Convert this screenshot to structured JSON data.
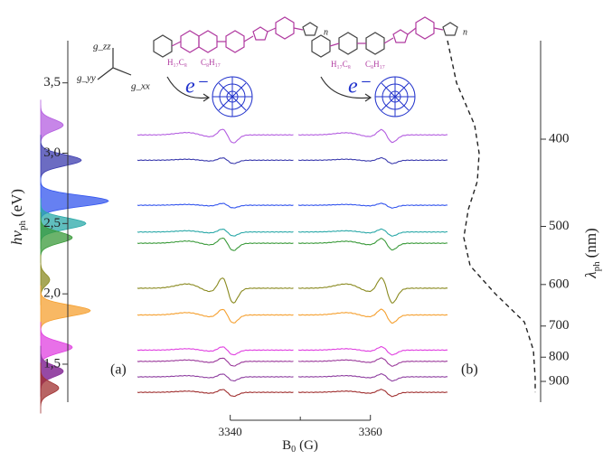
{
  "chart_data": {
    "type": "stacked-spectra",
    "y_label": {
      "main": "hν",
      "sub": "ph",
      "unit": "(eV)"
    },
    "y2_label": {
      "main": "λ",
      "sub": "ph",
      "unit": "(nm)"
    },
    "x_label": {
      "main": "B",
      "sub": "0",
      "unit": "(G)"
    },
    "ylim": [
      1.23,
      3.8
    ],
    "yticks": [
      {
        "value": 1.5,
        "label": "1,5"
      },
      {
        "value": 2.0,
        "label": "2,0"
      },
      {
        "value": 2.5,
        "label": "2,5"
      },
      {
        "value": 3.0,
        "label": "3,0"
      },
      {
        "value": 3.5,
        "label": "3,5"
      }
    ],
    "y2ticks": [
      400,
      500,
      600,
      700,
      800,
      900
    ],
    "xlim": [
      3326.5,
      3371
    ],
    "xticks": [
      3340,
      3360
    ],
    "xminor": [
      3350
    ],
    "panel_labels": [
      "(a)",
      "(b)"
    ],
    "electron_label": "e⁻",
    "g_labels": [
      "g_zz",
      "g_yy",
      "g_xx"
    ],
    "substituents": [
      "H₁₇C₈",
      "C₈H₁₇"
    ],
    "repeat_label": "n",
    "traces": [
      {
        "energy": 3.13,
        "color": "#b45ee0",
        "peak_energy": 3.2,
        "peak_height": 25,
        "amp_a": 12,
        "amp_b": 11
      },
      {
        "energy": 2.95,
        "color": "#3b3bae",
        "peak_energy": 2.95,
        "peak_height": 45,
        "amp_a": 5,
        "amp_b": 5
      },
      {
        "energy": 2.63,
        "color": "#3355ee",
        "peak_energy": 2.66,
        "peak_height": 75,
        "amp_a": 4,
        "amp_b": 4
      },
      {
        "energy": 2.44,
        "color": "#2aa8a8",
        "peak_energy": 2.5,
        "peak_height": 50,
        "amp_a": 6,
        "amp_b": 6
      },
      {
        "energy": 2.36,
        "color": "#3a9a3a",
        "peak_energy": 2.4,
        "peak_height": 35,
        "amp_a": 11,
        "amp_b": 10
      },
      {
        "energy": 2.04,
        "color": "#8a8a20",
        "peak_energy": 2.1,
        "peak_height": 10,
        "amp_a": 22,
        "amp_b": 22
      },
      {
        "energy": 1.85,
        "color": "#f5a030",
        "peak_energy": 1.88,
        "peak_height": 55,
        "amp_a": 12,
        "amp_b": 12
      },
      {
        "energy": 1.6,
        "color": "#e040e0",
        "peak_energy": 1.62,
        "peak_height": 35,
        "amp_a": 7,
        "amp_b": 7
      },
      {
        "energy": 1.52,
        "color": "#9b3a9b",
        "peak_energy": 1.45,
        "peak_height": 25,
        "amp_a": 7,
        "amp_b": 7
      },
      {
        "energy": 1.41,
        "color": "#8e3ea0",
        "peak_energy": 1.45,
        "peak_height": 25,
        "amp_a": 6,
        "amp_b": 6
      },
      {
        "energy": 1.3,
        "color": "#a03030",
        "peak_energy": 1.33,
        "peak_height": 20,
        "amp_a": 6,
        "amp_b": 6
      }
    ],
    "absorption": {
      "energy": [
        3.8,
        3.5,
        3.2,
        3.0,
        2.8,
        2.6,
        2.4,
        2.2,
        2.0,
        1.8,
        1.6,
        1.4,
        1.3
      ],
      "intensity": [
        1.05,
        0.95,
        0.75,
        0.7,
        0.72,
        0.82,
        0.87,
        0.8,
        0.52,
        0.2,
        0.1,
        0.08,
        0.08
      ]
    }
  }
}
